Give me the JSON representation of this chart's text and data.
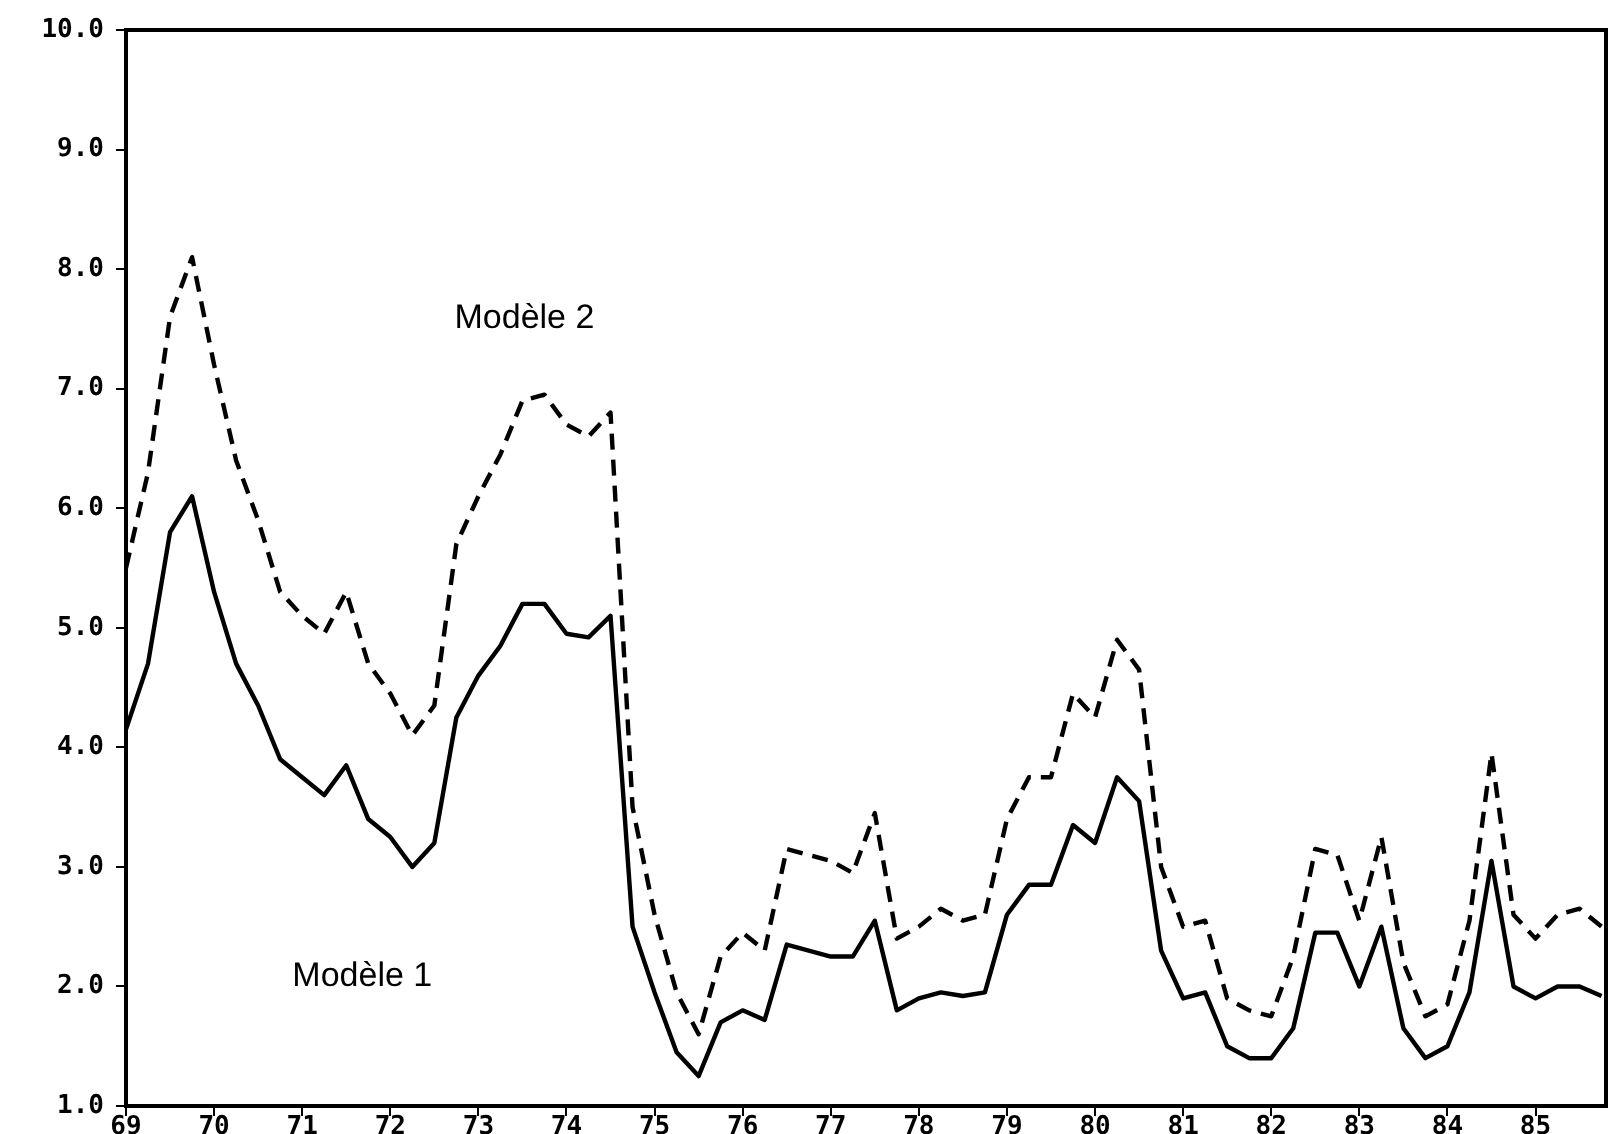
{
  "chart_data": {
    "type": "line",
    "x": [
      69,
      69.25,
      69.5,
      69.75,
      70,
      70.25,
      70.5,
      70.75,
      71,
      71.25,
      71.5,
      71.75,
      72,
      72.25,
      72.5,
      72.75,
      73,
      73.25,
      73.5,
      73.75,
      74,
      74.25,
      74.5,
      74.75,
      75,
      75.25,
      75.5,
      75.75,
      76,
      76.25,
      76.5,
      76.75,
      77,
      77.25,
      77.5,
      77.75,
      78,
      78.25,
      78.5,
      78.75,
      79,
      79.25,
      79.5,
      79.75,
      80,
      80.25,
      80.5,
      80.75,
      81,
      81.25,
      81.5,
      81.75,
      82,
      82.25,
      82.5,
      82.75,
      83,
      83.25,
      83.5,
      83.75,
      84,
      84.25,
      84.5,
      84.75,
      85,
      85.25,
      85.5,
      85.75
    ],
    "series": [
      {
        "name": "Modèle 1",
        "color": "#000000",
        "line_style": "solid",
        "values": [
          4.15,
          4.7,
          5.8,
          6.1,
          5.3,
          4.7,
          4.35,
          3.9,
          3.75,
          3.6,
          3.85,
          3.4,
          3.25,
          3.0,
          3.2,
          4.25,
          4.6,
          4.85,
          5.2,
          5.2,
          4.95,
          4.92,
          5.1,
          2.5,
          1.95,
          1.45,
          1.25,
          1.7,
          1.8,
          1.72,
          2.35,
          2.3,
          2.25,
          2.25,
          2.55,
          1.8,
          1.9,
          1.95,
          1.92,
          1.95,
          2.6,
          2.85,
          2.85,
          3.35,
          3.2,
          3.75,
          3.55,
          2.3,
          1.9,
          1.95,
          1.5,
          1.4,
          1.4,
          1.65,
          2.45,
          2.45,
          2.0,
          2.5,
          1.65,
          1.4,
          1.5,
          1.95,
          3.05,
          2.0,
          1.9,
          2.0,
          2.0,
          1.92
        ]
      },
      {
        "name": "Modèle 2",
        "color": "#000000",
        "line_style": "dashed",
        "values": [
          5.5,
          6.3,
          7.6,
          8.1,
          7.2,
          6.4,
          5.9,
          5.3,
          5.1,
          4.95,
          5.3,
          4.7,
          4.45,
          4.1,
          4.35,
          5.7,
          6.1,
          6.45,
          6.9,
          6.95,
          6.7,
          6.6,
          6.8,
          3.5,
          2.6,
          1.95,
          1.6,
          2.25,
          2.45,
          2.3,
          3.15,
          3.1,
          3.05,
          2.95,
          3.45,
          2.4,
          2.5,
          2.65,
          2.55,
          2.6,
          3.4,
          3.75,
          3.75,
          4.45,
          4.25,
          4.9,
          4.65,
          3.0,
          2.5,
          2.55,
          1.9,
          1.8,
          1.75,
          2.25,
          3.15,
          3.1,
          2.55,
          3.25,
          2.2,
          1.75,
          1.85,
          2.55,
          3.95,
          2.6,
          2.4,
          2.6,
          2.65,
          2.5
        ]
      }
    ],
    "xlim": [
      69,
      85.8
    ],
    "xticks": [
      69,
      70,
      71,
      72,
      73,
      74,
      75,
      76,
      77,
      78,
      79,
      80,
      81,
      82,
      83,
      84,
      85
    ],
    "ylim": [
      1,
      10
    ],
    "yticks": [
      {
        "value": 1,
        "label": "1.0"
      },
      {
        "value": 2,
        "label": "2.0"
      },
      {
        "value": 3,
        "label": "3.0"
      },
      {
        "value": 4,
        "label": "4.0"
      },
      {
        "value": 5,
        "label": "5.0"
      },
      {
        "value": 6,
        "label": "6.0"
      },
      {
        "value": 7,
        "label": "7.0"
      },
      {
        "value": 8,
        "label": "8.0"
      },
      {
        "value": 9,
        "label": "9.0"
      },
      {
        "value": 10,
        "label": "10.0"
      }
    ],
    "grid": false,
    "legend": false,
    "marker": "none"
  }
}
